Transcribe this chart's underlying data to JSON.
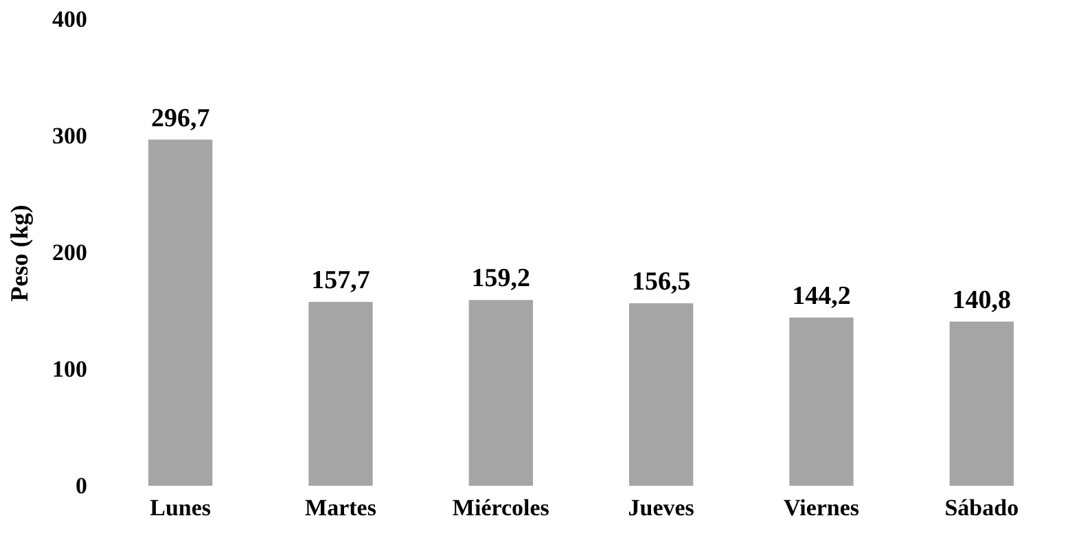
{
  "chart_data": {
    "type": "bar",
    "ylabel": "Peso (kg)",
    "categories": [
      "Lunes",
      "Martes",
      "Miércoles",
      "Jueves",
      "Viernes",
      "Sábado"
    ],
    "values": [
      296.7,
      157.7,
      159.2,
      156.5,
      144.2,
      140.8
    ],
    "value_labels": [
      "296,7",
      "157,7",
      "159,2",
      "156,5",
      "144,2",
      "140,8"
    ],
    "color": "#a5a5a5",
    "ylim": [
      0,
      400
    ],
    "yticks": [
      0,
      100,
      200,
      300,
      400
    ],
    "grid": false
  }
}
